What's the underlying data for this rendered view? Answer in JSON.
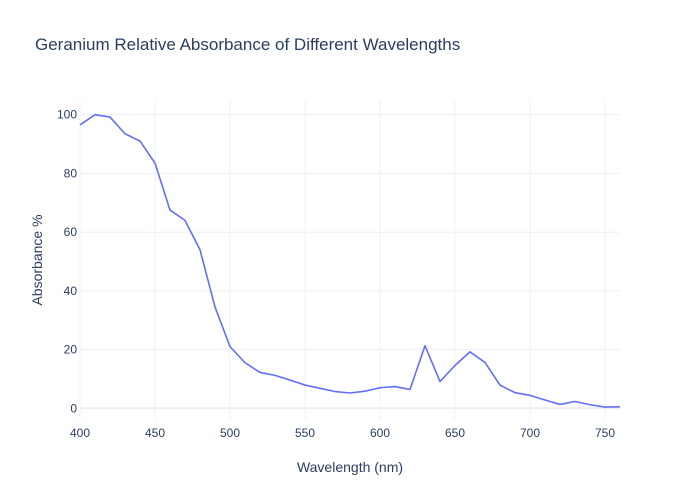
{
  "chart_data": {
    "type": "line",
    "title": "Geranium Relative Absorbance of Different Wavelengths",
    "xlabel": "Wavelength (nm)",
    "ylabel": "Absorbance %",
    "xlim": [
      400,
      760
    ],
    "ylim": [
      -4,
      105
    ],
    "xticks": [
      400,
      450,
      500,
      550,
      600,
      650,
      700,
      750
    ],
    "yticks": [
      0,
      20,
      40,
      60,
      80,
      100
    ],
    "grid": true,
    "legend": "none",
    "series": [
      {
        "color": "#636efa",
        "x": [
          400,
          410,
          420,
          430,
          440,
          450,
          460,
          470,
          480,
          490,
          500,
          510,
          520,
          530,
          540,
          550,
          560,
          570,
          580,
          590,
          600,
          610,
          620,
          630,
          640,
          650,
          660,
          670,
          680,
          690,
          700,
          710,
          720,
          730,
          740,
          750,
          760
        ],
        "y": [
          96.5,
          100,
          99.2,
          93.5,
          91,
          83.5,
          67.5,
          64,
          54,
          34.5,
          21,
          15.5,
          12.2,
          11.2,
          9.6,
          7.9,
          6.8,
          5.7,
          5.2,
          5.8,
          7,
          7.4,
          6.4,
          21.3,
          9.1,
          14.6,
          19.2,
          15.6,
          7.9,
          5.3,
          4.4,
          2.8,
          1.3,
          2.3,
          1.2,
          0.4,
          0.5
        ]
      }
    ]
  }
}
